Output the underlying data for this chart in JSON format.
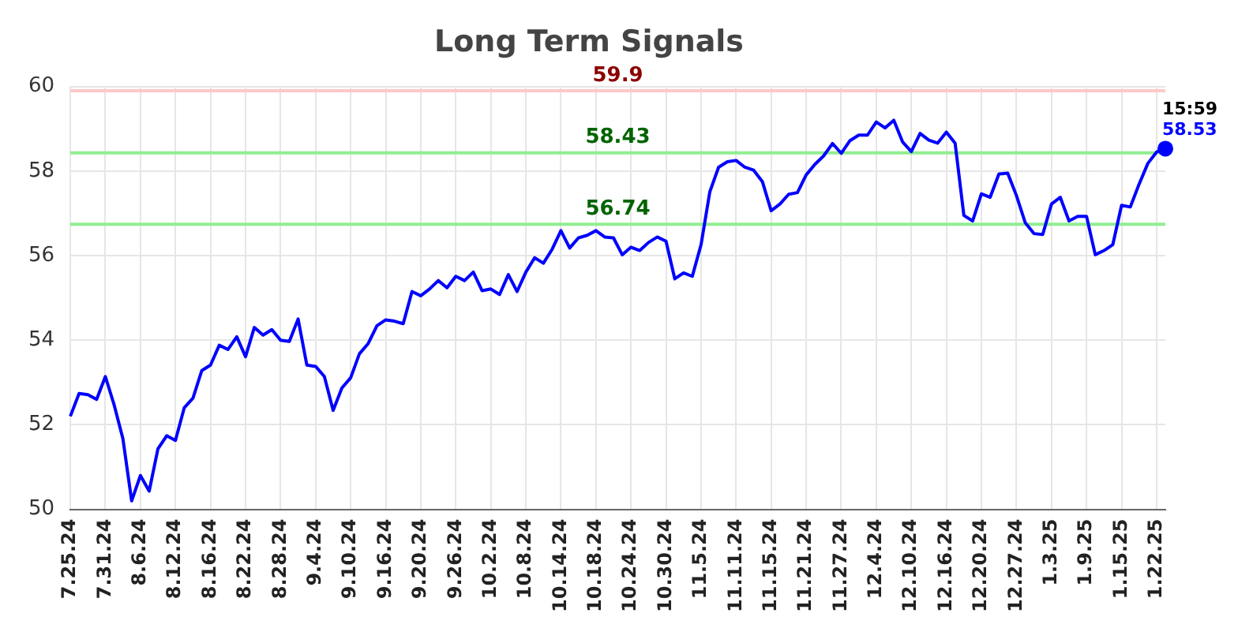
{
  "chart_data": {
    "type": "line",
    "title": "Long Term Signals",
    "categories": [
      "7.25.24",
      null,
      null,
      null,
      "7.31.24",
      null,
      null,
      null,
      "8.6.24",
      null,
      null,
      null,
      "8.12.24",
      null,
      null,
      null,
      "8.16.24",
      null,
      null,
      null,
      "8.22.24",
      null,
      null,
      null,
      "8.28.24",
      null,
      null,
      null,
      "9.4.24",
      null,
      null,
      null,
      "9.10.24",
      null,
      null,
      null,
      "9.16.24",
      null,
      null,
      null,
      "9.20.24",
      null,
      null,
      null,
      "9.26.24",
      null,
      null,
      null,
      "10.2.24",
      null,
      null,
      null,
      "10.8.24",
      null,
      null,
      null,
      "10.14.24",
      null,
      null,
      null,
      "10.18.24",
      null,
      null,
      null,
      "10.24.24",
      null,
      null,
      null,
      "10.30.24",
      null,
      null,
      null,
      "11.5.24",
      null,
      null,
      null,
      "11.11.24",
      null,
      null,
      null,
      "11.15.24",
      null,
      null,
      null,
      "11.21.24",
      null,
      null,
      null,
      "11.27.24",
      null,
      null,
      null,
      "12.4.24",
      null,
      null,
      null,
      "12.10.24",
      null,
      null,
      null,
      "12.16.24",
      null,
      null,
      null,
      "12.20.24",
      null,
      null,
      null,
      "12.27.24",
      null,
      null,
      null,
      "1.3.25",
      null,
      null,
      null,
      "1.9.25",
      null,
      null,
      null,
      "1.15.25",
      null,
      null,
      null,
      "1.22.25",
      null
    ],
    "series": [
      {
        "color": "#0000ff",
        "values": [
          52.2,
          52.74,
          52.71,
          52.6,
          53.14,
          52.47,
          51.67,
          50.2,
          50.8,
          50.43,
          51.43,
          51.74,
          51.63,
          52.4,
          52.63,
          53.28,
          53.41,
          53.88,
          53.78,
          54.08,
          53.61,
          54.3,
          54.12,
          54.25,
          54.0,
          53.97,
          54.5,
          53.41,
          53.38,
          53.14,
          52.34,
          52.87,
          53.11,
          53.68,
          53.92,
          54.34,
          54.48,
          54.45,
          54.39,
          55.15,
          55.05,
          55.21,
          55.41,
          55.24,
          55.51,
          55.41,
          55.61,
          55.17,
          55.21,
          55.08,
          55.55,
          55.15,
          55.61,
          55.95,
          55.82,
          56.15,
          56.59,
          56.18,
          56.42,
          56.48,
          56.59,
          56.44,
          56.42,
          56.02,
          56.2,
          56.12,
          56.31,
          56.44,
          56.34,
          55.45,
          55.59,
          55.51,
          56.26,
          57.51,
          58.09,
          58.22,
          58.25,
          58.09,
          58.02,
          57.75,
          57.06,
          57.22,
          57.45,
          57.49,
          57.91,
          58.16,
          58.36,
          58.65,
          58.42,
          58.72,
          58.85,
          58.85,
          59.16,
          59.02,
          59.2,
          58.69,
          58.46,
          58.89,
          58.73,
          58.66,
          58.92,
          58.66,
          56.95,
          56.82,
          57.46,
          57.38,
          57.93,
          57.95,
          57.42,
          56.78,
          56.52,
          56.5,
          57.22,
          57.38,
          56.82,
          56.93,
          56.93,
          56.02,
          56.12,
          56.26,
          57.19,
          57.15,
          57.69,
          58.18,
          58.45,
          58.53
        ],
        "value_labels": [
          null,
          null,
          null,
          null,
          null,
          null,
          null,
          null,
          null,
          null,
          null,
          null,
          null,
          null,
          null,
          null,
          null,
          null,
          null,
          null,
          null,
          null,
          null,
          null,
          null,
          null,
          null,
          null,
          null,
          null,
          null,
          null,
          null,
          null,
          null,
          null,
          null,
          null,
          null,
          null,
          null,
          null,
          null,
          null,
          null,
          null,
          null,
          null,
          null,
          null,
          null,
          null,
          null,
          null,
          null,
          null,
          null,
          null,
          null,
          null,
          null,
          null,
          null,
          null,
          null,
          null,
          null,
          null,
          null,
          null,
          null,
          null,
          null,
          null,
          null,
          null,
          null,
          null,
          null,
          null,
          null,
          null,
          null,
          null,
          null,
          null,
          null,
          null,
          null,
          null,
          null,
          null,
          null,
          null,
          null,
          null,
          null,
          null,
          null,
          null,
          null,
          null,
          null,
          null,
          null,
          null,
          null,
          null,
          null,
          null,
          null,
          null,
          null,
          null,
          null,
          null,
          null,
          null,
          null,
          null,
          null,
          null,
          null,
          null,
          null,
          "58.53"
        ]
      }
    ],
    "ylim": [
      50,
      60
    ],
    "yticks": [
      50,
      52,
      54,
      56,
      58,
      60
    ],
    "grid": true,
    "ref_lines": [
      {
        "axis": "y",
        "value": 59.9,
        "label": "59.9",
        "color": "#ffc8c8"
      },
      {
        "axis": "y",
        "value": 58.43,
        "label": "58.43",
        "color": "#90ee90"
      },
      {
        "axis": "y",
        "value": 56.74,
        "label": "56.74",
        "color": "#90ee90"
      }
    ],
    "annotations": [
      "15:59"
    ]
  }
}
